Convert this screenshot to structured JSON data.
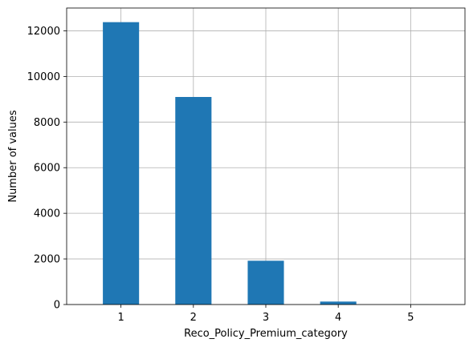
{
  "chart_data": {
    "type": "bar",
    "categories": [
      "1",
      "2",
      "3",
      "4",
      "5"
    ],
    "values": [
      12380,
      9100,
      1920,
      130,
      5
    ],
    "title": "",
    "xlabel": "Reco_Policy_Premium_category",
    "ylabel": "Number of values",
    "ylim": [
      0,
      13000
    ],
    "yticks": [
      0,
      2000,
      4000,
      6000,
      8000,
      10000,
      12000
    ],
    "grid": true,
    "legend": "none",
    "bar_color": "#1f77b4"
  }
}
